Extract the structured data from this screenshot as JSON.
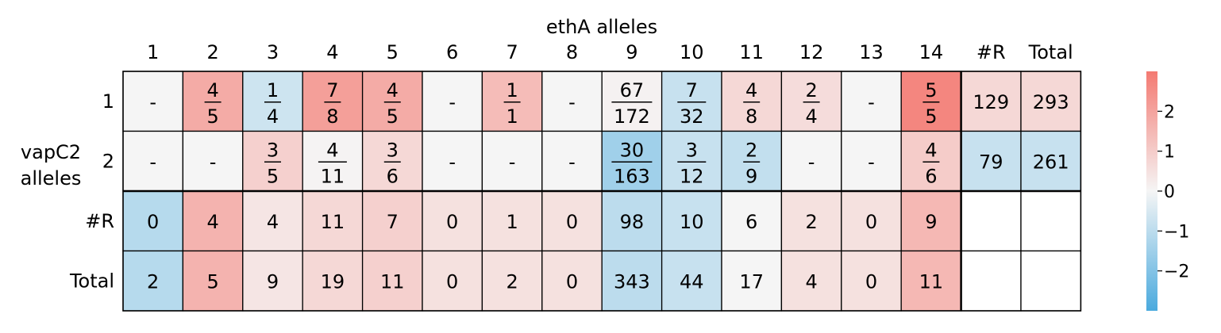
{
  "chart_data": {
    "type": "heatmap",
    "title": "",
    "xlabel": "ethA alleles",
    "ylabel": "vapC2 alleles",
    "x_ticks": [
      "1",
      "2",
      "3",
      "4",
      "5",
      "6",
      "7",
      "8",
      "9",
      "10",
      "11",
      "12",
      "13",
      "14",
      "#R",
      "Total"
    ],
    "y_ticks": [
      "1",
      "2",
      "#R",
      "Total"
    ],
    "colorbar": {
      "range": [
        -3,
        3
      ],
      "ticks": [
        2,
        1,
        0,
        -1,
        -2
      ],
      "tick_labels": [
        "2",
        "1",
        "0",
        "−1",
        "−2"
      ],
      "colors": {
        "neg": "#4aaade",
        "zero": "#f5f5f5",
        "pos": "#f47a72"
      }
    },
    "rows": [
      {
        "label": "1",
        "cells": [
          {
            "text": "-",
            "v": 0
          },
          {
            "num": "4",
            "den": "5",
            "v": 1.8
          },
          {
            "num": "1",
            "den": "4",
            "v": -0.7
          },
          {
            "num": "7",
            "den": "8",
            "v": 2.1
          },
          {
            "num": "4",
            "den": "5",
            "v": 1.8
          },
          {
            "text": "-",
            "v": 0
          },
          {
            "num": "1",
            "den": "1",
            "v": 1.4
          },
          {
            "text": "-",
            "v": 0
          },
          {
            "num": "67",
            "den": "172",
            "v": 0.1
          },
          {
            "num": "7",
            "den": "32",
            "v": -0.8
          },
          {
            "num": "4",
            "den": "8",
            "v": 0.7
          },
          {
            "num": "2",
            "den": "4",
            "v": 0.6
          },
          {
            "text": "-",
            "v": 0
          },
          {
            "num": "5",
            "den": "5",
            "v": 2.7
          },
          {
            "text": "129",
            "v": 0.7
          },
          {
            "text": "293",
            "v": 0.7
          }
        ]
      },
      {
        "label": "2",
        "cells": [
          {
            "text": "-",
            "v": 0
          },
          {
            "text": "-",
            "v": 0
          },
          {
            "num": "3",
            "den": "5",
            "v": 0.9
          },
          {
            "num": "4",
            "den": "11",
            "v": 0.05
          },
          {
            "num": "3",
            "den": "6",
            "v": 0.7
          },
          {
            "text": "-",
            "v": 0
          },
          {
            "text": "-",
            "v": 0
          },
          {
            "text": "-",
            "v": 0
          },
          {
            "num": "30",
            "den": "163",
            "v": -1.5
          },
          {
            "num": "3",
            "den": "12",
            "v": -0.8
          },
          {
            "num": "2",
            "den": "9",
            "v": -0.9
          },
          {
            "text": "-",
            "v": 0
          },
          {
            "text": "-",
            "v": 0
          },
          {
            "num": "4",
            "den": "6",
            "v": 1.0
          },
          {
            "text": "79",
            "v": -0.8
          },
          {
            "text": "261",
            "v": -0.8
          }
        ]
      },
      {
        "label": "#R",
        "cells": [
          {
            "text": "0",
            "v": -1.1
          },
          {
            "text": "4",
            "v": 1.6
          },
          {
            "text": "4",
            "v": 0.4
          },
          {
            "text": "11",
            "v": 0.7
          },
          {
            "text": "7",
            "v": 0.9
          },
          {
            "text": "0",
            "v": 0.5
          },
          {
            "text": "1",
            "v": 0.5
          },
          {
            "text": "0",
            "v": 0.5
          },
          {
            "text": "98",
            "v": -1.0
          },
          {
            "text": "10",
            "v": -0.8
          },
          {
            "text": "6",
            "v": 0
          },
          {
            "text": "2",
            "v": 0.5
          },
          {
            "text": "0",
            "v": 0.5
          },
          {
            "text": "9",
            "v": 1.5
          },
          {
            "text": "",
            "empty": true
          },
          {
            "text": "",
            "empty": true
          }
        ]
      },
      {
        "label": "Total",
        "cells": [
          {
            "text": "2",
            "v": -1.1
          },
          {
            "text": "5",
            "v": 1.6
          },
          {
            "text": "9",
            "v": 0.4
          },
          {
            "text": "19",
            "v": 0.7
          },
          {
            "text": "11",
            "v": 0.9
          },
          {
            "text": "0",
            "v": 0.5
          },
          {
            "text": "2",
            "v": 0.5
          },
          {
            "text": "0",
            "v": 0.5
          },
          {
            "text": "343",
            "v": -1.0
          },
          {
            "text": "44",
            "v": -0.8
          },
          {
            "text": "17",
            "v": 0
          },
          {
            "text": "4",
            "v": 0.5
          },
          {
            "text": "0",
            "v": 0.5
          },
          {
            "text": "11",
            "v": 1.5
          },
          {
            "text": "",
            "empty": true
          },
          {
            "text": "",
            "empty": true
          }
        ]
      }
    ]
  }
}
